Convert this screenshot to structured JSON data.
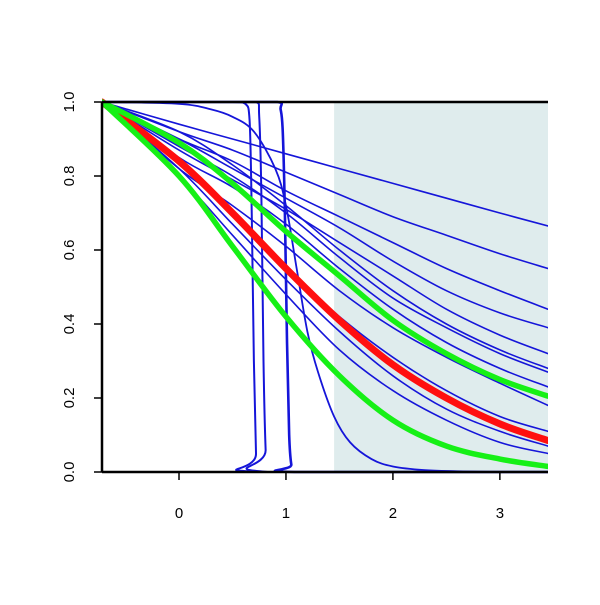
{
  "chart_data": {
    "type": "line",
    "title": "",
    "xlabel": "",
    "ylabel": "",
    "xlim": [
      -0.72,
      3.45
    ],
    "ylim": [
      0,
      1
    ],
    "x_ticks": [
      0,
      1,
      2,
      3
    ],
    "y_ticks": [
      0.0,
      0.2,
      0.4,
      0.6,
      0.8,
      1.0
    ],
    "x_tick_labels": [
      "0",
      "1",
      "2",
      "3"
    ],
    "y_tick_labels": [
      "0.0",
      "0.2",
      "0.4",
      "0.6",
      "0.8",
      "1.0"
    ],
    "grid": false,
    "shaded_region": {
      "x_start": 1.45,
      "x_end": 3.45,
      "color": "#dfeced"
    },
    "colors": {
      "blue_series": "#1515d9",
      "red_series": "#ff0f0f",
      "green_series": "#16f016",
      "axes": "#000000"
    },
    "series": [
      {
        "color": "#1515d9",
        "width": 1.6,
        "x": [
          -0.72,
          0.0,
          0.5,
          1.0,
          1.5,
          2.0,
          2.5,
          3.0,
          3.45
        ],
        "y": [
          1.0,
          0.94,
          0.9,
          0.86,
          0.82,
          0.78,
          0.74,
          0.7,
          0.665
        ]
      },
      {
        "color": "#1515d9",
        "width": 1.6,
        "x": [
          -0.72,
          0.0,
          0.5,
          1.0,
          1.5,
          2.0,
          2.5,
          3.0,
          3.45
        ],
        "y": [
          1.0,
          0.92,
          0.87,
          0.81,
          0.75,
          0.69,
          0.64,
          0.59,
          0.55
        ]
      },
      {
        "color": "#1515d9",
        "width": 1.6,
        "x": [
          -0.72,
          0.0,
          0.5,
          1.0,
          1.5,
          2.0,
          2.5,
          3.0,
          3.45
        ],
        "y": [
          1.0,
          0.9,
          0.84,
          0.76,
          0.69,
          0.62,
          0.55,
          0.49,
          0.44
        ]
      },
      {
        "color": "#1515d9",
        "width": 1.6,
        "x": [
          -0.72,
          0.0,
          0.5,
          1.0,
          1.5,
          2.0,
          2.5,
          3.0,
          3.45
        ],
        "y": [
          1.0,
          0.9,
          0.82,
          0.74,
          0.66,
          0.57,
          0.49,
          0.43,
          0.39
        ]
      },
      {
        "color": "#1515d9",
        "width": 1.6,
        "x": [
          -0.72,
          0.0,
          0.5,
          1.0,
          1.5,
          2.0,
          2.5,
          3.0,
          3.45
        ],
        "y": [
          1.0,
          0.87,
          0.79,
          0.71,
          0.62,
          0.53,
          0.44,
          0.37,
          0.32
        ]
      },
      {
        "color": "#1515d9",
        "width": 1.6,
        "x": [
          -0.72,
          0.0,
          0.5,
          1.0,
          1.5,
          2.0,
          2.5,
          3.0,
          3.45
        ],
        "y": [
          1.0,
          0.92,
          0.83,
          0.72,
          0.6,
          0.49,
          0.4,
          0.33,
          0.28
        ]
      },
      {
        "color": "#1515d9",
        "width": 1.6,
        "x": [
          -0.72,
          0.0,
          0.5,
          1.0,
          1.5,
          2.0,
          2.5,
          3.0,
          3.45
        ],
        "y": [
          1.0,
          0.88,
          0.8,
          0.7,
          0.58,
          0.47,
          0.39,
          0.32,
          0.27
        ]
      },
      {
        "color": "#1515d9",
        "width": 1.6,
        "x": [
          -0.72,
          0.0,
          0.5,
          1.0,
          1.5,
          2.0,
          2.5,
          3.0,
          3.45
        ],
        "y": [
          1.0,
          0.85,
          0.77,
          0.67,
          0.55,
          0.44,
          0.35,
          0.28,
          0.23
        ]
      },
      {
        "color": "#1515d9",
        "width": 1.6,
        "x": [
          -0.72,
          0.0,
          0.5,
          1.0,
          1.5,
          2.0,
          2.5,
          3.0,
          3.45
        ],
        "y": [
          1.0,
          0.82,
          0.72,
          0.61,
          0.49,
          0.39,
          0.31,
          0.24,
          0.18
        ]
      },
      {
        "color": "#1515d9",
        "width": 1.6,
        "x": [
          -0.72,
          0.0,
          0.5,
          1.0,
          1.5,
          2.0,
          2.5,
          3.0,
          3.45
        ],
        "y": [
          1.0,
          0.84,
          0.7,
          0.55,
          0.42,
          0.31,
          0.22,
          0.15,
          0.11
        ]
      },
      {
        "color": "#1515d9",
        "width": 1.6,
        "x": [
          -0.72,
          0.0,
          0.5,
          1.0,
          1.5,
          2.0,
          2.5,
          3.0,
          3.45
        ],
        "y": [
          1.0,
          0.82,
          0.67,
          0.52,
          0.38,
          0.26,
          0.17,
          0.11,
          0.07
        ]
      },
      {
        "color": "#1515d9",
        "width": 1.6,
        "x": [
          -0.72,
          0.0,
          0.5,
          1.0,
          1.5,
          2.0,
          2.5,
          3.0,
          3.45
        ],
        "y": [
          1.0,
          0.8,
          0.64,
          0.48,
          0.33,
          0.22,
          0.14,
          0.08,
          0.05
        ]
      },
      {
        "color": "#1515d9",
        "width": 1.8,
        "x": [
          -0.72,
          0.0,
          0.3,
          0.5,
          0.7,
          0.9,
          1.0,
          1.1,
          1.2,
          1.3,
          1.45,
          1.6,
          1.8,
          2.0,
          2.3,
          2.6,
          3.0,
          3.45
        ],
        "y": [
          1.0,
          0.995,
          0.98,
          0.96,
          0.92,
          0.82,
          0.72,
          0.55,
          0.38,
          0.27,
          0.15,
          0.08,
          0.035,
          0.015,
          0.005,
          0.002,
          0.0,
          0.0
        ]
      },
      {
        "color": "#1515d9",
        "width": 2.0,
        "x": [
          -0.72,
          0.0,
          0.5,
          0.62,
          0.66,
          0.68,
          0.7,
          0.72,
          0.74,
          3.45
        ],
        "y": [
          1.0,
          1.0,
          1.0,
          0.995,
          0.95,
          0.7,
          0.3,
          0.05,
          0.0,
          0.0
        ]
      },
      {
        "color": "#1515d9",
        "width": 2.0,
        "x": [
          -0.72,
          0.0,
          0.5,
          0.72,
          0.75,
          0.77,
          0.79,
          0.81,
          0.83,
          3.45
        ],
        "y": [
          1.0,
          1.0,
          1.0,
          1.0,
          0.96,
          0.75,
          0.3,
          0.06,
          0.0,
          0.0
        ]
      },
      {
        "color": "#1515d9",
        "width": 2.6,
        "x": [
          -0.72,
          0.0,
          0.5,
          0.92,
          0.95,
          0.97,
          0.99,
          1.01,
          1.03,
          1.05,
          1.08,
          3.45
        ],
        "y": [
          1.0,
          1.0,
          1.0,
          1.0,
          0.98,
          0.92,
          0.7,
          0.35,
          0.1,
          0.02,
          0.0,
          0.0
        ]
      },
      {
        "color": "#ff0f0f",
        "width": 7.0,
        "x": [
          -0.72,
          0.0,
          0.5,
          1.0,
          1.5,
          2.0,
          2.5,
          3.0,
          3.45
        ],
        "y": [
          1.0,
          0.84,
          0.7,
          0.55,
          0.41,
          0.29,
          0.2,
          0.13,
          0.085
        ]
      },
      {
        "color": "#16f016",
        "width": 5.5,
        "x": [
          -0.72,
          0.0,
          0.5,
          1.0,
          1.5,
          2.0,
          2.5,
          3.0,
          3.45
        ],
        "y": [
          1.0,
          0.89,
          0.78,
          0.65,
          0.53,
          0.41,
          0.32,
          0.25,
          0.205
        ]
      },
      {
        "color": "#16f016",
        "width": 5.5,
        "x": [
          -0.72,
          0.0,
          0.5,
          1.0,
          1.5,
          2.0,
          2.5,
          3.0,
          3.45
        ],
        "y": [
          1.0,
          0.8,
          0.61,
          0.42,
          0.26,
          0.14,
          0.07,
          0.035,
          0.015
        ]
      }
    ]
  }
}
